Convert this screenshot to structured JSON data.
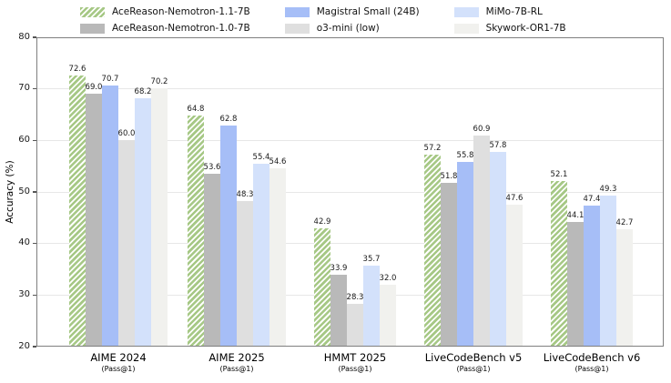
{
  "chart_data": {
    "type": "bar",
    "title": "",
    "ylabel": "Accuracy (%)",
    "ylim": [
      20,
      80
    ],
    "yticks": [
      20,
      30,
      40,
      50,
      60,
      70,
      80
    ],
    "grid": "horizontal",
    "legend_position": "top",
    "legend_columns": 3,
    "categories": [
      "AIME 2024",
      "AIME 2025",
      "HMMT 2025",
      "LiveCodeBench v5",
      "LiveCodeBench v6"
    ],
    "category_sublabel": "(Pass@1)",
    "series": [
      {
        "name": "AceReason-Nemotron-1.1-7B",
        "color": "#a6c885",
        "hatch": "diagonal-white",
        "values": [
          72.6,
          64.8,
          42.9,
          57.2,
          52.1
        ]
      },
      {
        "name": "AceReason-Nemotron-1.0-7B",
        "color": "#b9b9b9",
        "hatch": null,
        "values": [
          69.0,
          53.6,
          33.9,
          51.8,
          44.1
        ]
      },
      {
        "name": "Magistral Small (24B)",
        "color": "#a6bef7",
        "hatch": null,
        "values": [
          70.7,
          62.8,
          null,
          55.8,
          47.4
        ]
      },
      {
        "name": "o3-mini (low)",
        "color": "#dfdfdf",
        "hatch": null,
        "values": [
          60.0,
          48.3,
          28.3,
          60.9,
          null
        ]
      },
      {
        "name": "MiMo-7B-RL",
        "color": "#d3e1fb",
        "hatch": null,
        "values": [
          68.2,
          55.4,
          35.7,
          57.8,
          49.3
        ]
      },
      {
        "name": "Skywork-OR1-7B",
        "color": "#f1f1ee",
        "hatch": null,
        "values": [
          70.2,
          54.6,
          32.0,
          47.6,
          42.7
        ]
      }
    ]
  }
}
